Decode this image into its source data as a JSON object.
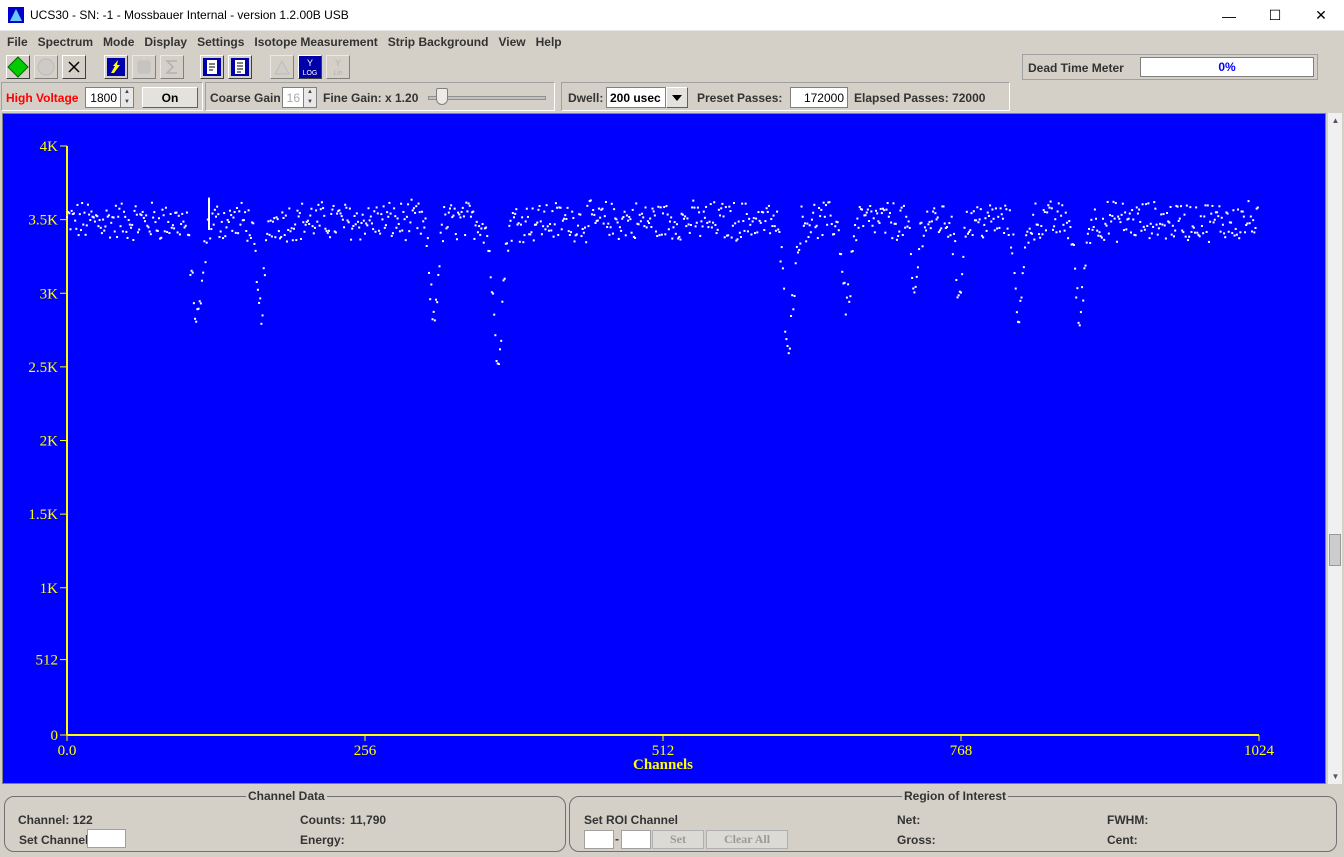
{
  "window": {
    "title": "UCS30 - SN: -1 - Mossbauer Internal  - version 1.2.00B USB",
    "minimize_glyph": "—",
    "maximize_glyph": "☐",
    "close_glyph": "✕"
  },
  "menu": [
    "File",
    "Spectrum",
    "Mode",
    "Display",
    "Settings",
    "Isotope Measurement",
    "Strip Background",
    "View",
    "Help"
  ],
  "toolbar": {
    "icons": [
      "start-icon",
      "stop-icon",
      "clear-icon",
      "mode-icon",
      "roi-icon",
      "sum-icon",
      "report-icon",
      "report2-icon",
      "peak-icon",
      "log-scale-icon",
      "lin-scale-icon"
    ],
    "log_label": "LOG",
    "lin_label": "Lin",
    "y_label": "Y",
    "dead_time_label": "Dead Time Meter",
    "dead_time_value": "0%",
    "dead_time_fraction": 0
  },
  "controls": {
    "high_voltage_label": "High Voltage",
    "high_voltage_value": "1800",
    "hv_button": "On",
    "coarse_gain_label": "Coarse Gain",
    "coarse_gain_value": "16",
    "fine_gain_label": "Fine Gain: x 1.20",
    "dwell_label": "Dwell:",
    "dwell_value": "200 usec",
    "preset_passes_label": "Preset Passes:",
    "preset_passes_value": "172000",
    "elapsed_passes_label": "Elapsed Passes: 72000"
  },
  "colors": {
    "plot_bg": "#0000ff",
    "axis": "#ffff00",
    "points": "#ffffff",
    "hv_label": "#ff0000"
  },
  "chart_data": {
    "type": "scatter",
    "xlabel": "Channels",
    "ylabel": "",
    "x_ticks": [
      {
        "v": 0,
        "label": "0.0"
      },
      {
        "v": 256,
        "label": "256"
      },
      {
        "v": 512,
        "label": "512"
      },
      {
        "v": 768,
        "label": "768"
      },
      {
        "v": 1024,
        "label": "1024"
      }
    ],
    "y_ticks": [
      {
        "v": 0,
        "label": "0"
      },
      {
        "v": 512,
        "label": "512"
      },
      {
        "v": 1000,
        "label": "1K"
      },
      {
        "v": 1500,
        "label": "1.5K"
      },
      {
        "v": 2000,
        "label": "2K"
      },
      {
        "v": 2500,
        "label": "2.5K"
      },
      {
        "v": 3000,
        "label": "3K"
      },
      {
        "v": 3500,
        "label": "3.5K"
      },
      {
        "v": 4000,
        "label": "4K"
      }
    ],
    "xlim": [
      0,
      1024
    ],
    "ylim": [
      0,
      4000
    ],
    "cursor_channel": 122,
    "baseline_counts": 3490,
    "noise_amplitude": 120,
    "dips": [
      {
        "channel": 112,
        "depth": 680,
        "width": 6
      },
      {
        "channel": 166,
        "depth": 620,
        "width": 5
      },
      {
        "channel": 315,
        "depth": 650,
        "width": 5
      },
      {
        "channel": 370,
        "depth": 880,
        "width": 6
      },
      {
        "channel": 620,
        "depth": 790,
        "width": 6
      },
      {
        "channel": 670,
        "depth": 560,
        "width": 5
      },
      {
        "channel": 728,
        "depth": 500,
        "width": 4
      },
      {
        "channel": 766,
        "depth": 480,
        "width": 4
      },
      {
        "channel": 818,
        "depth": 620,
        "width": 5
      },
      {
        "channel": 870,
        "depth": 660,
        "width": 5
      }
    ]
  },
  "channel_data": {
    "title": "Channel Data",
    "channel_label": "Channel: 122",
    "counts_label": "Counts:",
    "counts_value": "11,790",
    "set_channel_label": "Set Channel",
    "energy_label": "Energy:"
  },
  "roi": {
    "title": "Region of Interest",
    "set_roi_label": "Set ROI Channel",
    "dash": "-",
    "set_button": "Set",
    "clear_all_button": "Clear All",
    "net_label": "Net:",
    "fwhm_label": "FWHM:",
    "gross_label": "Gross:",
    "cent_label": "Cent:"
  }
}
